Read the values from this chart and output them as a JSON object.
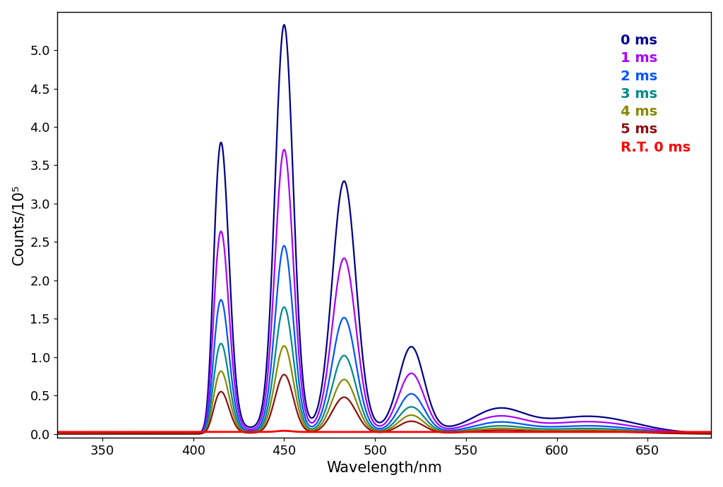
{
  "xlabel": "Wavelength/nm",
  "ylabel": "Counts/10⁵",
  "xlim": [
    325,
    685
  ],
  "ylim": [
    -0.05,
    5.5
  ],
  "yticks": [
    0.0,
    0.5,
    1.0,
    1.5,
    2.0,
    2.5,
    3.0,
    3.5,
    4.0,
    4.5,
    5.0
  ],
  "xticks": [
    350,
    400,
    450,
    500,
    550,
    600,
    650
  ],
  "series": [
    {
      "label": "0 ms",
      "color": "#00008B",
      "scale": 1.0
    },
    {
      "label": "1 ms",
      "color": "#AA00FF",
      "scale": 0.695
    },
    {
      "label": "2 ms",
      "color": "#0055FF",
      "scale": 0.46
    },
    {
      "label": "3 ms",
      "color": "#008888",
      "scale": 0.31
    },
    {
      "label": "4 ms",
      "color": "#888800",
      "scale": 0.215
    },
    {
      "label": "5 ms",
      "color": "#8B1010",
      "scale": 0.145
    },
    {
      "label": "R.T. 0 ms",
      "color": "#FF0000",
      "scale": 0.0
    }
  ],
  "background_color": "#FFFFFF",
  "figsize": [
    10.24,
    6.91
  ],
  "dpi": 100,
  "legend_fontsize": 14,
  "axis_fontsize": 15,
  "tick_fontsize": 13
}
